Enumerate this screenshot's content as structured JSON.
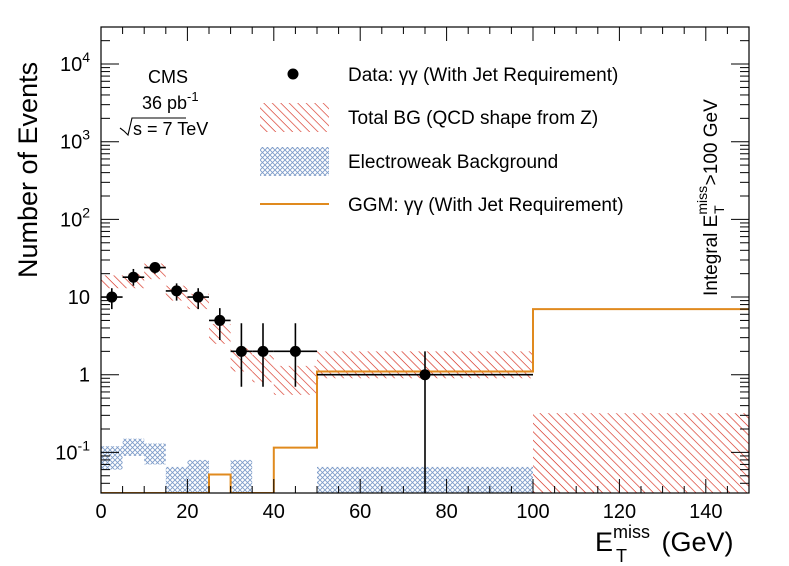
{
  "chart_data": {
    "type": "histogram",
    "experiment": "CMS",
    "luminosity": "36 pb",
    "luminosity_exp": "-1",
    "energy": "s = 7 TeV",
    "xlabel": "E",
    "xlabel_sup": "miss",
    "xlabel_sub": "T",
    "xlabel_unit": "(GeV)",
    "ylabel": "Number of Events",
    "xlim": [
      0,
      150
    ],
    "ylim": [
      0.03,
      30000
    ],
    "xticks": [
      0,
      20,
      40,
      60,
      80,
      100,
      120,
      140
    ],
    "yticks": [
      {
        "value": 0.1,
        "base": "10",
        "exp": "-1"
      },
      {
        "value": 1,
        "base": "1",
        "exp": ""
      },
      {
        "value": 10,
        "base": "10",
        "exp": ""
      },
      {
        "value": 100,
        "base": "10",
        "exp": "2"
      },
      {
        "value": 1000,
        "base": "10",
        "exp": "3"
      },
      {
        "value": 10000,
        "base": "10",
        "exp": "4"
      }
    ],
    "side_label": "Integral E",
    "side_label_sup": "miss",
    "side_label_sub": "T",
    "side_label_tail": ">100 GeV",
    "legend": {
      "data": "Data: γγ (With Jet Requirement)",
      "total_bg": "Total BG (QCD shape from Z)",
      "ewk": "Electroweak Background",
      "ggm": "GGM: γγ (With Jet Requirement)"
    },
    "colors": {
      "total_bg": "#d52a1a",
      "ewk": "#7e9cc9",
      "ggm": "#e08a1e",
      "data": "#000000"
    },
    "series": [
      {
        "name": "Data: γγ (With Jet Requirement)",
        "points": [
          {
            "x": 2.5,
            "xerr": 2.5,
            "y": 10,
            "ylo": 7,
            "yhi": 13
          },
          {
            "x": 7.5,
            "xerr": 2.5,
            "y": 18,
            "ylo": 14,
            "yhi": 23
          },
          {
            "x": 12.5,
            "xerr": 2.5,
            "y": 24,
            "ylo": 20,
            "yhi": 28
          },
          {
            "x": 17.5,
            "xerr": 2.5,
            "y": 12,
            "ylo": 9,
            "yhi": 15
          },
          {
            "x": 22.5,
            "xerr": 2.5,
            "y": 10,
            "ylo": 7,
            "yhi": 13
          },
          {
            "x": 27.5,
            "xerr": 2.5,
            "y": 5,
            "ylo": 2.8,
            "yhi": 7.2
          },
          {
            "x": 32.5,
            "xerr": 2.5,
            "y": 2,
            "ylo": 0.7,
            "yhi": 4.6
          },
          {
            "x": 37.5,
            "xerr": 2.5,
            "y": 2,
            "ylo": 0.7,
            "yhi": 4.6
          },
          {
            "x": 45,
            "xerr": 5,
            "y": 2,
            "ylo": 0.7,
            "yhi": 4.6
          },
          {
            "x": 75,
            "xerr": 25,
            "y": 1,
            "ylo": 0.03,
            "yhi": 2
          }
        ]
      },
      {
        "name": "Total BG (QCD shape from Z)",
        "bins": [
          {
            "x0": 0,
            "x1": 5,
            "lo": 13,
            "hi": 19
          },
          {
            "x0": 5,
            "x1": 10,
            "lo": 13,
            "hi": 20
          },
          {
            "x0": 10,
            "x1": 15,
            "lo": 17,
            "hi": 27
          },
          {
            "x0": 15,
            "x1": 20,
            "lo": 9,
            "hi": 14
          },
          {
            "x0": 20,
            "x1": 25,
            "lo": 7,
            "hi": 11
          },
          {
            "x0": 25,
            "x1": 30,
            "lo": 2.5,
            "hi": 4.5
          },
          {
            "x0": 30,
            "x1": 35,
            "lo": 1.1,
            "hi": 2.2
          },
          {
            "x0": 35,
            "x1": 40,
            "lo": 0.8,
            "hi": 1.8
          },
          {
            "x0": 40,
            "x1": 50,
            "lo": 0.55,
            "hi": 1.3
          },
          {
            "x0": 50,
            "x1": 100,
            "lo": 0.9,
            "hi": 2.0
          },
          {
            "x0": 100,
            "x1": 150,
            "lo": 0.03,
            "hi": 0.32
          }
        ]
      },
      {
        "name": "Electroweak Background",
        "bins": [
          {
            "x0": 0,
            "x1": 5,
            "lo": 0.06,
            "hi": 0.12
          },
          {
            "x0": 5,
            "x1": 10,
            "lo": 0.09,
            "hi": 0.15
          },
          {
            "x0": 10,
            "x1": 15,
            "lo": 0.07,
            "hi": 0.13
          },
          {
            "x0": 15,
            "x1": 20,
            "lo": 0.03,
            "hi": 0.065
          },
          {
            "x0": 20,
            "x1": 25,
            "lo": 0.03,
            "hi": 0.08
          },
          {
            "x0": 30,
            "x1": 35,
            "lo": 0.03,
            "hi": 0.08
          },
          {
            "x0": 50,
            "x1": 100,
            "lo": 0.03,
            "hi": 0.065
          }
        ]
      },
      {
        "name": "GGM: γγ (With Jet Requirement)",
        "step": [
          {
            "x0": 0,
            "x1": 25,
            "y": 0.03
          },
          {
            "x0": 25,
            "x1": 30,
            "y": 0.052
          },
          {
            "x0": 30,
            "x1": 40,
            "y": 0.03
          },
          {
            "x0": 40,
            "x1": 50,
            "y": 0.115
          },
          {
            "x0": 50,
            "x1": 100,
            "y": 1.1
          },
          {
            "x0": 100,
            "x1": 150,
            "y": 7
          }
        ]
      }
    ]
  }
}
